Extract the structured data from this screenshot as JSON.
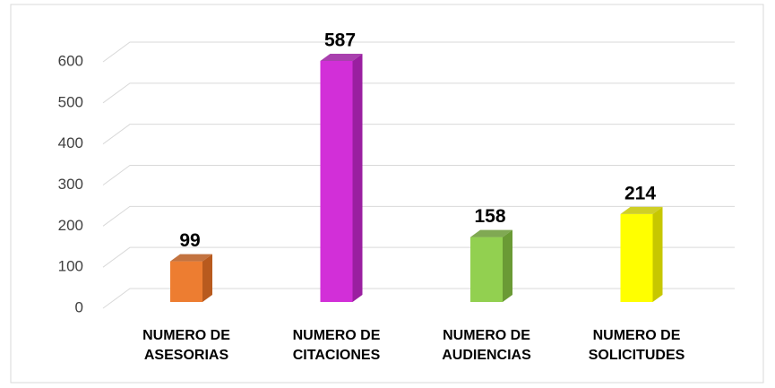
{
  "chart_data": {
    "type": "bar3d",
    "categories": [
      "NUMERO DE ASESORIAS",
      "NUMERO DE CITACIONES",
      "NUMERO DE AUDIENCIAS",
      "NUMERO DE SOLICITUDES"
    ],
    "values": [
      99,
      587,
      158,
      214
    ],
    "colors": [
      "#ED7D31",
      "#D22FD8",
      "#92D050",
      "#FFFF00"
    ],
    "side_colors": [
      "#B85A1E",
      "#9A1FA0",
      "#6A9A35",
      "#C7C700"
    ],
    "ylim": [
      0,
      600
    ],
    "yticks": [
      0,
      100,
      200,
      300,
      400,
      500,
      600
    ],
    "grid": true
  }
}
